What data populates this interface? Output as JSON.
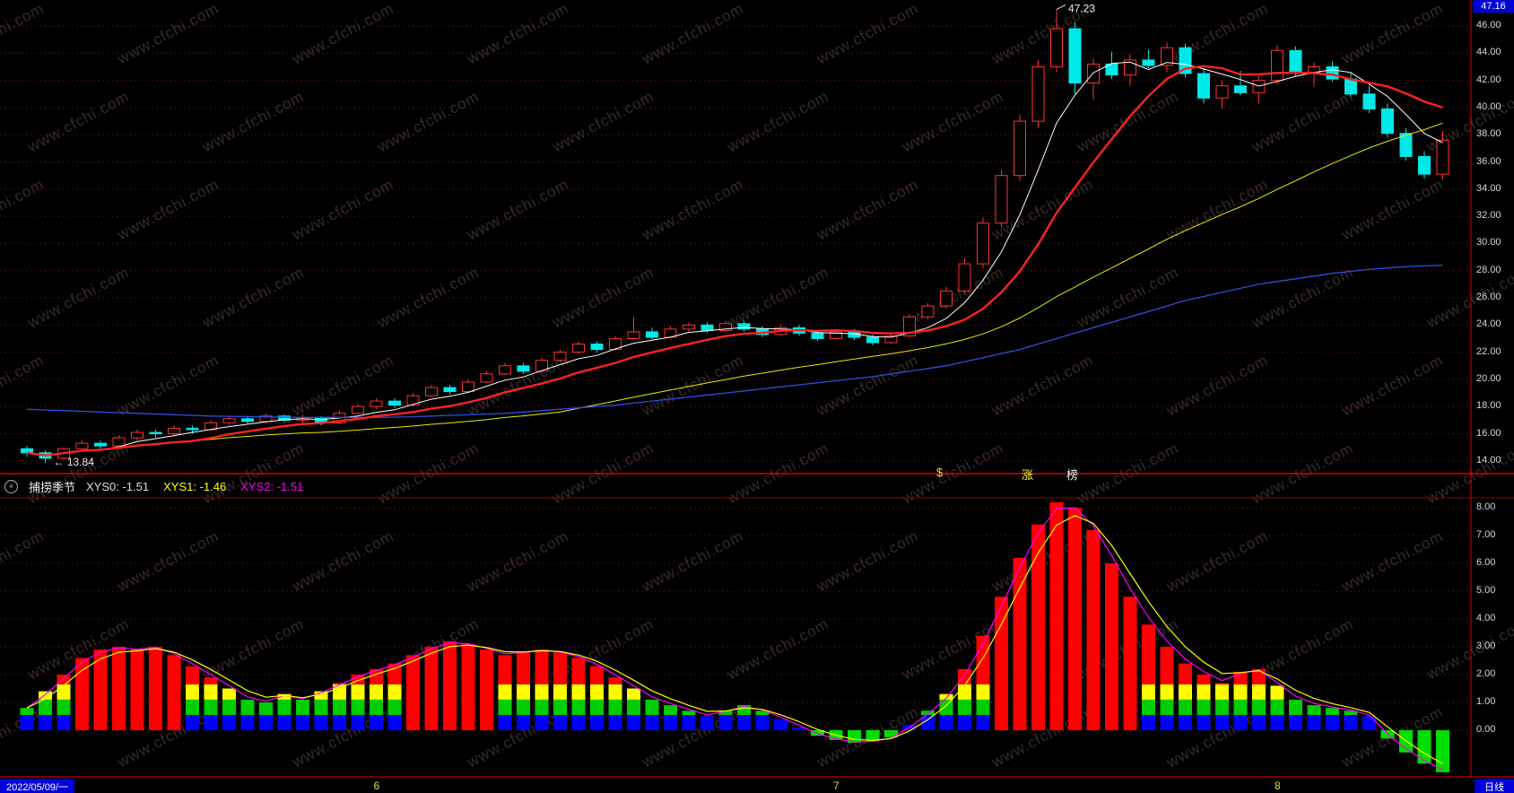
{
  "badge": {
    "value": "47.16"
  },
  "watermark": {
    "text": "www.cfchi.com"
  },
  "separator_ticker": {
    "items": [
      {
        "text": "$",
        "color": "#ffd24a",
        "x": 1043
      },
      {
        "text": "涨",
        "color": "#ffff33",
        "x": 1138
      },
      {
        "text": "榜",
        "color": "#f0f0f0",
        "x": 1188
      }
    ]
  },
  "indicator_header": {
    "collapse_icon": "×",
    "name": "捕捞季节",
    "values": [
      {
        "label": "XYS0: -1.51",
        "color": "#dddddd"
      },
      {
        "label": "XYS1: -1.46",
        "color": "#ffff00"
      },
      {
        "label": "XYS2: -1.51",
        "color": "#ff00ff"
      }
    ]
  },
  "status_bar": {
    "date": "2022/05/09/一",
    "period": "日线",
    "month_ticks": [
      {
        "label": "6",
        "index": 19
      },
      {
        "label": "7",
        "index": 44
      },
      {
        "label": "8",
        "index": 68
      }
    ]
  },
  "axes": {
    "main": {
      "color": "#d8d8d8",
      "tick_labels": [
        "46.00",
        "44.00",
        "42.00",
        "40.00",
        "38.00",
        "36.00",
        "34.00",
        "32.00",
        "30.00",
        "28.00",
        "26.00",
        "24.00",
        "22.00",
        "20.00",
        "18.00",
        "16.00",
        "14.00"
      ]
    },
    "sub": {
      "color": "#d8d8d8",
      "tick_labels": [
        "8.00",
        "7.00",
        "6.00",
        "5.00",
        "4.00",
        "3.00",
        "2.00",
        "1.00",
        "0.00"
      ]
    }
  },
  "chart_data": [
    {
      "type": "candlestick",
      "panel": "main",
      "up_color": "#ff3232",
      "down_color": "#00e8e8",
      "y_axis": {
        "min": 13.0,
        "max": 47.8,
        "tick_step": 2
      },
      "ohlc": [
        [
          14.9,
          15.1,
          14.3,
          14.6
        ],
        [
          14.6,
          14.8,
          13.84,
          14.2
        ],
        [
          14.2,
          15.0,
          14.1,
          14.9
        ],
        [
          14.9,
          15.5,
          14.7,
          15.3
        ],
        [
          15.3,
          15.5,
          14.9,
          15.1
        ],
        [
          15.1,
          15.9,
          15.0,
          15.7
        ],
        [
          15.7,
          16.3,
          15.5,
          16.1
        ],
        [
          16.1,
          16.3,
          15.7,
          16.0
        ],
        [
          16.0,
          16.6,
          15.8,
          16.4
        ],
        [
          16.4,
          16.6,
          16.0,
          16.3
        ],
        [
          16.3,
          17.0,
          16.2,
          16.8
        ],
        [
          16.8,
          17.3,
          16.6,
          17.1
        ],
        [
          17.1,
          17.3,
          16.7,
          16.9
        ],
        [
          16.9,
          17.5,
          16.8,
          17.3
        ],
        [
          17.3,
          17.4,
          16.8,
          17.0
        ],
        [
          17.0,
          17.4,
          16.8,
          17.2
        ],
        [
          17.2,
          17.3,
          16.6,
          16.8
        ],
        [
          16.8,
          17.7,
          16.7,
          17.5
        ],
        [
          17.5,
          18.2,
          17.4,
          18.0
        ],
        [
          18.0,
          18.6,
          17.8,
          18.4
        ],
        [
          18.4,
          18.6,
          17.9,
          18.1
        ],
        [
          18.1,
          19.0,
          18.0,
          18.8
        ],
        [
          18.8,
          19.6,
          18.7,
          19.4
        ],
        [
          19.4,
          19.6,
          18.9,
          19.1
        ],
        [
          19.1,
          20.0,
          19.0,
          19.8
        ],
        [
          19.8,
          20.6,
          19.7,
          20.4
        ],
        [
          20.4,
          21.2,
          20.3,
          21.0
        ],
        [
          21.0,
          21.2,
          20.4,
          20.6
        ],
        [
          20.6,
          21.6,
          20.5,
          21.4
        ],
        [
          21.4,
          22.2,
          21.3,
          22.0
        ],
        [
          22.0,
          22.8,
          21.9,
          22.6
        ],
        [
          22.6,
          22.8,
          22.0,
          22.2
        ],
        [
          22.2,
          23.2,
          22.1,
          23.0
        ],
        [
          23.0,
          24.6,
          22.9,
          23.5
        ],
        [
          23.5,
          23.8,
          22.9,
          23.1
        ],
        [
          23.1,
          23.9,
          23.0,
          23.7
        ],
        [
          23.7,
          24.2,
          23.4,
          24.0
        ],
        [
          24.0,
          24.2,
          23.4,
          23.6
        ],
        [
          23.6,
          24.3,
          23.5,
          24.1
        ],
        [
          24.1,
          24.3,
          23.5,
          23.7
        ],
        [
          23.7,
          23.9,
          23.1,
          23.3
        ],
        [
          23.3,
          24.0,
          23.2,
          23.8
        ],
        [
          23.8,
          24.0,
          23.2,
          23.4
        ],
        [
          23.4,
          23.6,
          22.8,
          23.0
        ],
        [
          23.0,
          23.7,
          22.9,
          23.5
        ],
        [
          23.5,
          23.7,
          22.9,
          23.1
        ],
        [
          23.1,
          23.3,
          22.5,
          22.7
        ],
        [
          22.7,
          23.4,
          22.6,
          23.2
        ],
        [
          23.2,
          24.8,
          23.1,
          24.6
        ],
        [
          24.6,
          25.6,
          24.4,
          25.4
        ],
        [
          25.4,
          26.8,
          25.2,
          26.5
        ],
        [
          26.5,
          28.9,
          26.3,
          28.5
        ],
        [
          28.5,
          31.9,
          28.2,
          31.5
        ],
        [
          31.5,
          35.4,
          31.2,
          35.0
        ],
        [
          35.0,
          39.5,
          34.6,
          39.0
        ],
        [
          39.0,
          43.5,
          38.5,
          43.0
        ],
        [
          43.0,
          47.23,
          42.6,
          45.8
        ],
        [
          45.8,
          46.3,
          41.0,
          41.8
        ],
        [
          41.8,
          43.6,
          40.6,
          43.2
        ],
        [
          43.2,
          44.1,
          42.1,
          42.4
        ],
        [
          42.4,
          43.9,
          41.6,
          43.5
        ],
        [
          43.5,
          44.3,
          42.9,
          43.1
        ],
        [
          43.1,
          44.8,
          42.6,
          44.4
        ],
        [
          44.4,
          44.7,
          42.2,
          42.5
        ],
        [
          42.5,
          42.9,
          40.3,
          40.7
        ],
        [
          40.7,
          42.0,
          39.9,
          41.6
        ],
        [
          41.6,
          42.7,
          40.9,
          41.1
        ],
        [
          41.1,
          42.3,
          40.3,
          42.0
        ],
        [
          42.0,
          44.6,
          41.7,
          44.2
        ],
        [
          44.2,
          44.5,
          42.3,
          42.6
        ],
        [
          42.6,
          43.3,
          41.5,
          43.0
        ],
        [
          43.0,
          43.4,
          41.9,
          42.1
        ],
        [
          42.1,
          42.6,
          40.8,
          41.0
        ],
        [
          41.0,
          41.6,
          39.6,
          39.9
        ],
        [
          39.9,
          40.3,
          37.8,
          38.1
        ],
        [
          38.1,
          38.5,
          36.1,
          36.4
        ],
        [
          36.4,
          36.8,
          34.8,
          35.1
        ],
        [
          35.1,
          38.3,
          34.7,
          37.6
        ]
      ],
      "annotations": {
        "high": {
          "index": 56,
          "label": "47.23"
        },
        "low": {
          "index": 1,
          "label": "← 13.84"
        }
      },
      "ma_lines": [
        {
          "name": "ma-fast",
          "color": "#ffffff",
          "width": 1,
          "window": 5
        },
        {
          "name": "ma-mid",
          "color": "#e9e900",
          "width": 1,
          "window": 30
        },
        {
          "name": "ma-long",
          "color": "#2f4de0",
          "width": 1.3,
          "values": [
            17.8,
            17.75,
            17.7,
            17.65,
            17.6,
            17.55,
            17.5,
            17.45,
            17.4,
            17.35,
            17.3,
            17.28,
            17.26,
            17.24,
            17.22,
            17.2,
            17.2,
            17.2,
            17.2,
            17.2,
            17.22,
            17.25,
            17.3,
            17.35,
            17.4,
            17.45,
            17.5,
            17.6,
            17.7,
            17.8,
            17.9,
            18.0,
            18.1,
            18.25,
            18.4,
            18.55,
            18.7,
            18.85,
            19.0,
            19.15,
            19.3,
            19.45,
            19.6,
            19.75,
            19.9,
            20.05,
            20.2,
            20.4,
            20.6,
            20.8,
            21.0,
            21.3,
            21.6,
            21.9,
            22.2,
            22.6,
            23.0,
            23.4,
            23.8,
            24.2,
            24.6,
            25.0,
            25.4,
            25.8,
            26.1,
            26.4,
            26.7,
            27.0,
            27.2,
            27.4,
            27.6,
            27.8,
            27.95,
            28.1,
            28.2,
            28.3,
            28.35,
            28.4
          ]
        },
        {
          "name": "ma-main",
          "color": "#ff2222",
          "width": 2.4,
          "window": 10
        }
      ]
    },
    {
      "type": "bar",
      "panel": "sub",
      "title": "捕捞季节",
      "ylim": [
        -1.8,
        8.4
      ],
      "values": [
        0.8,
        1.4,
        2.0,
        2.6,
        2.9,
        3.0,
        2.9,
        3.0,
        2.7,
        2.3,
        1.9,
        1.5,
        1.1,
        1.0,
        1.3,
        1.1,
        1.4,
        1.7,
        2.0,
        2.2,
        2.4,
        2.7,
        3.0,
        3.2,
        3.1,
        2.9,
        2.7,
        2.8,
        2.9,
        2.8,
        2.6,
        2.3,
        1.9,
        1.5,
        1.1,
        0.9,
        0.7,
        0.5,
        0.7,
        0.9,
        0.7,
        0.4,
        0.1,
        -0.2,
        -0.35,
        -0.45,
        -0.4,
        -0.25,
        0.2,
        0.7,
        1.3,
        2.2,
        3.4,
        4.8,
        6.2,
        7.4,
        8.2,
        8.0,
        7.2,
        6.0,
        4.8,
        3.8,
        3.0,
        2.4,
        2.0,
        1.7,
        2.1,
        2.2,
        1.6,
        1.1,
        0.9,
        0.8,
        0.7,
        0.5,
        -0.3,
        -0.8,
        -1.2,
        -1.51
      ],
      "modes": "sssrrrrrrssssssssssssrrrrrsssssssssssssssssgggggsssssrrrrrrrrsssssssssssssgggg",
      "stack_levels": [
        0.55,
        1.1,
        1.65
      ],
      "stack_colors": {
        "blue": "#0000ff",
        "green": "#00cc00",
        "yellow": "#ffff00",
        "red": "#ff0000"
      },
      "neg_color": "#00dd00",
      "lines": [
        {
          "name": "xys2-line",
          "color": "#ff00ff",
          "width": 1.2,
          "ema": 0.8
        },
        {
          "name": "xys1-line",
          "color": "#ffff00",
          "width": 1.2,
          "ema": 0.55
        }
      ]
    }
  ]
}
